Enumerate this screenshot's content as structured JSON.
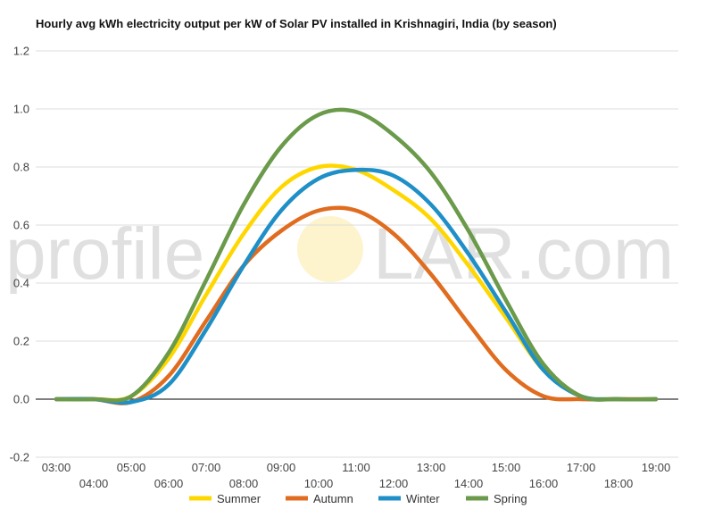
{
  "watermark": {
    "left": "profile",
    "right": "LAR.com"
  },
  "chart_data": {
    "type": "line",
    "title": "Hourly avg kWh electricity output per kW of Solar PV installed in Krishnagiri, India (by season)",
    "xlabel": "",
    "ylabel": "",
    "x": [
      "03:00",
      "04:00",
      "05:00",
      "06:00",
      "07:00",
      "08:00",
      "09:00",
      "10:00",
      "11:00",
      "12:00",
      "13:00",
      "14:00",
      "15:00",
      "16:00",
      "17:00",
      "18:00",
      "19:00"
    ],
    "ylim": [
      -0.2,
      1.2
    ],
    "yticks": [
      -0.2,
      0,
      0.2,
      0.4,
      0.6,
      0.8,
      1.0,
      1.2
    ],
    "ytick_labels": [
      "-0.2",
      "0.0",
      "0.2",
      "0.4",
      "0.6",
      "0.8",
      "1.0",
      "1.2"
    ],
    "grid": true,
    "legend_position": "bottom",
    "series": [
      {
        "name": "Summer",
        "color": "#FFD700",
        "values": [
          0,
          0,
          0.01,
          0.14,
          0.36,
          0.57,
          0.73,
          0.8,
          0.79,
          0.72,
          0.62,
          0.46,
          0.28,
          0.1,
          0.01,
          0,
          0
        ]
      },
      {
        "name": "Autumn",
        "color": "#E06C1F",
        "values": [
          0,
          0,
          -0.01,
          0.08,
          0.27,
          0.46,
          0.58,
          0.65,
          0.65,
          0.57,
          0.43,
          0.26,
          0.1,
          0.01,
          0,
          0,
          0
        ]
      },
      {
        "name": "Winter",
        "color": "#1F8FC7",
        "values": [
          0,
          0,
          -0.01,
          0.05,
          0.24,
          0.46,
          0.65,
          0.76,
          0.79,
          0.77,
          0.67,
          0.5,
          0.3,
          0.1,
          0.01,
          0,
          0
        ]
      },
      {
        "name": "Spring",
        "color": "#6A9A4A",
        "values": [
          0,
          0,
          0.01,
          0.16,
          0.41,
          0.67,
          0.87,
          0.98,
          0.99,
          0.91,
          0.78,
          0.58,
          0.34,
          0.12,
          0.01,
          0,
          0
        ]
      }
    ]
  }
}
